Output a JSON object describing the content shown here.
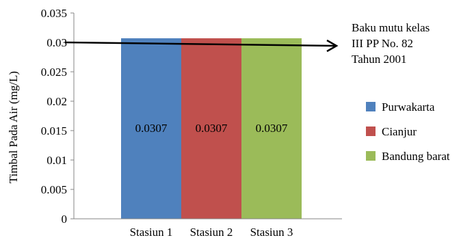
{
  "chart_data": {
    "type": "bar",
    "ylabel": "Timbal Pada Air (mg/L)",
    "ylim": [
      0,
      0.035
    ],
    "yticks": [
      "0",
      "0.005",
      "0.01",
      "0.015",
      "0.02",
      "0.025",
      "0.03",
      "0.035"
    ],
    "categories": [
      "Stasiun 1",
      "Stasiun 2",
      "Stasiun 3"
    ],
    "series": [
      {
        "name": "Purwakarta",
        "category": "Stasiun 1",
        "value": 0.0307,
        "label": "0.0307",
        "color": "#4f81bd"
      },
      {
        "name": "Cianjur",
        "category": "Stasiun 2",
        "value": 0.0307,
        "label": "0.0307",
        "color": "#c0504d"
      },
      {
        "name": "Bandung barat",
        "category": "Stasiun 3",
        "value": 0.0307,
        "label": "0.0307",
        "color": "#9bbb59"
      }
    ],
    "reference_line": {
      "value": 0.03,
      "label_lines": [
        "Baku mutu kelas",
        "III PP No. 82",
        "Tahun 2001"
      ]
    },
    "legend_position": "right",
    "grid": false
  }
}
